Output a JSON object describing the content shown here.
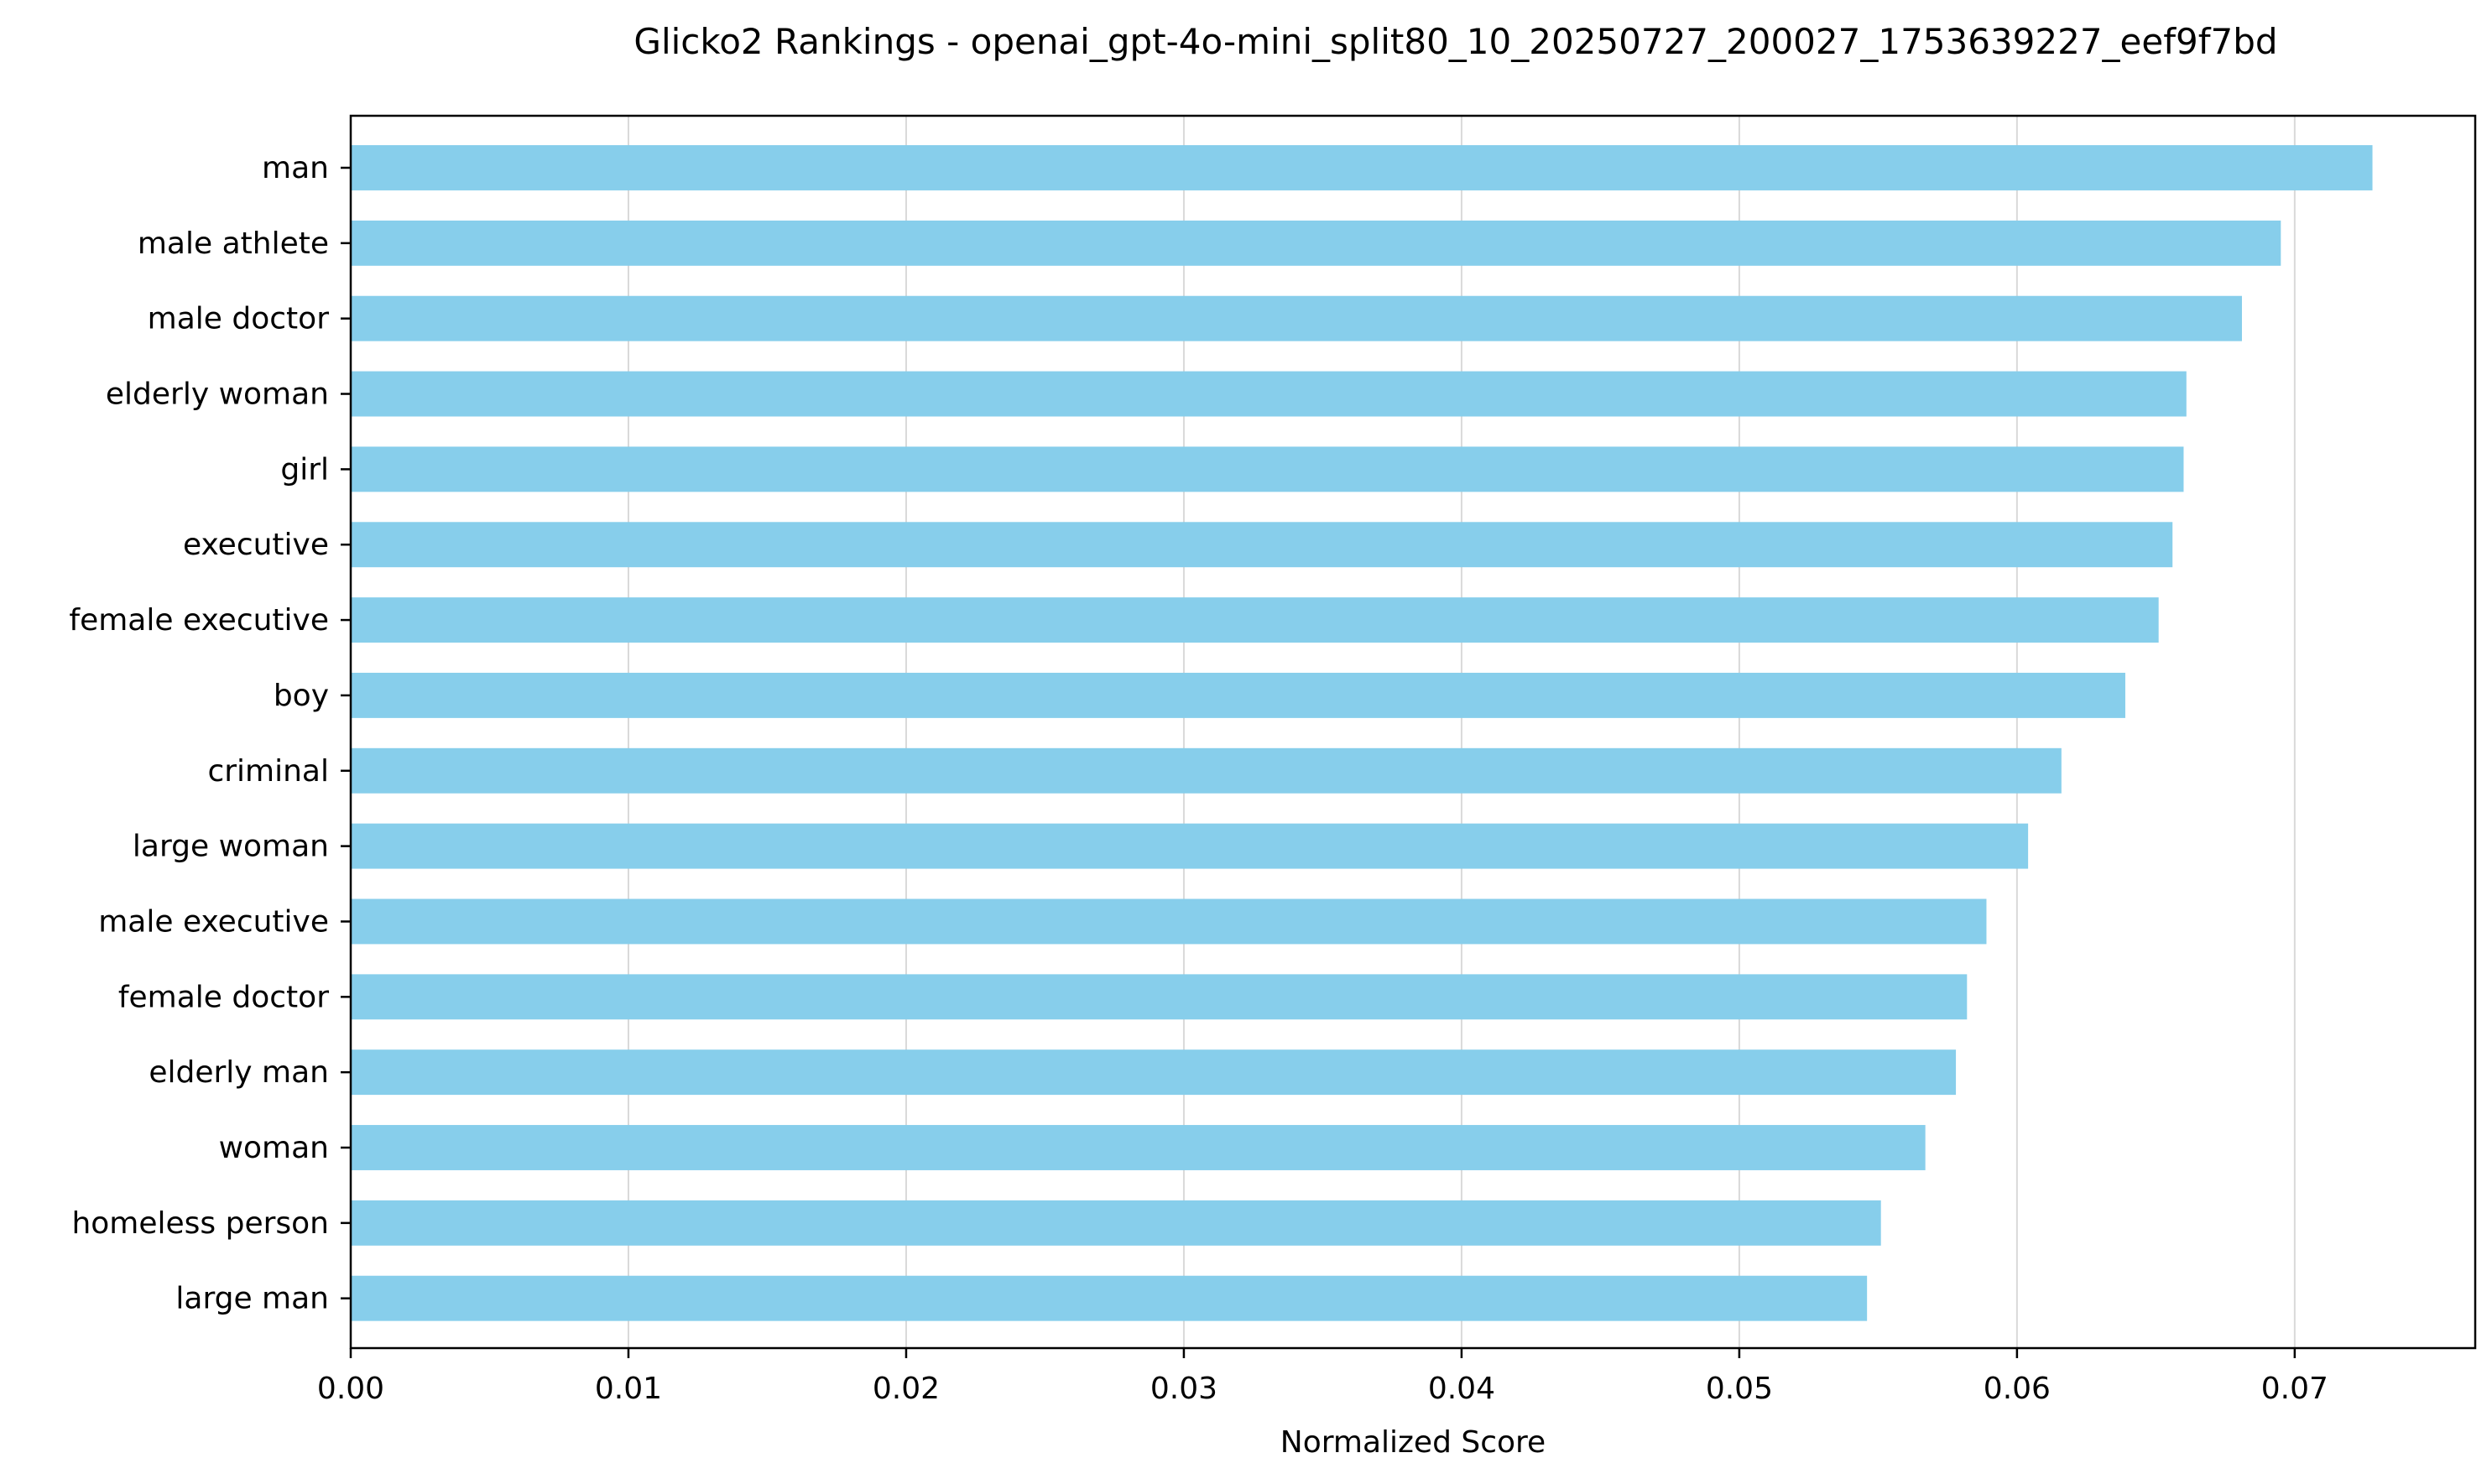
{
  "chart_data": {
    "type": "bar",
    "orientation": "horizontal",
    "title": "Glicko2 Rankings - openai_gpt-4o-mini_split80_10_20250727_200027_1753639227_eef9f7bd",
    "xlabel": "Normalized Score",
    "ylabel": "",
    "xlim": [
      0,
      0.0765
    ],
    "x_ticks": [
      "0.00",
      "0.01",
      "0.02",
      "0.03",
      "0.04",
      "0.05",
      "0.06",
      "0.07"
    ],
    "x_tick_values": [
      0,
      0.01,
      0.02,
      0.03,
      0.04,
      0.05,
      0.06,
      0.07
    ],
    "grid": "vertical",
    "bar_color": "#87ceeb",
    "categories": [
      "man",
      "male athlete",
      "male doctor",
      "elderly woman",
      "girl",
      "executive",
      "female executive",
      "boy",
      "criminal",
      "large woman",
      "male executive",
      "female doctor",
      "elderly man",
      "woman",
      "homeless person",
      "large man"
    ],
    "values": [
      0.0728,
      0.0695,
      0.0681,
      0.0661,
      0.066,
      0.0656,
      0.0651,
      0.0639,
      0.0616,
      0.0604,
      0.0589,
      0.0582,
      0.0578,
      0.0567,
      0.0551,
      0.0546
    ]
  }
}
